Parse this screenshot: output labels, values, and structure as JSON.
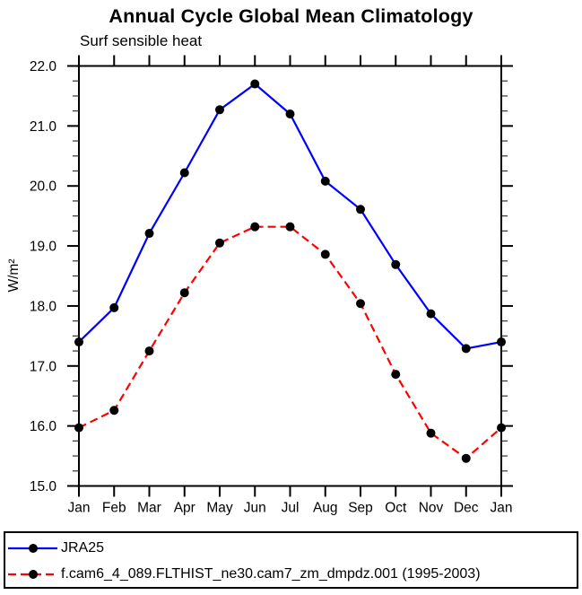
{
  "title": "Annual Cycle Global Mean Climatology",
  "subtitle": "Surf sensible heat",
  "chart_data": {
    "type": "line",
    "categories": [
      "Jan",
      "Feb",
      "Mar",
      "Apr",
      "May",
      "Jun",
      "Jul",
      "Aug",
      "Sep",
      "Oct",
      "Nov",
      "Dec",
      "Jan"
    ],
    "xlabel": "",
    "ylabel": "W/m²",
    "ylim": [
      15.0,
      22.0
    ],
    "ytick_major": 1.0,
    "ytick_minor": 0.25,
    "ytick_labels": [
      "15.0",
      "16.0",
      "17.0",
      "18.0",
      "19.0",
      "20.0",
      "21.0",
      "22.0"
    ],
    "grid": false,
    "legend_position": "bottom",
    "marker_color": "#000000",
    "frame_color": "#000000",
    "series": [
      {
        "name": "JRA25",
        "color": "#0000ff",
        "dash": "solid",
        "marker": "filled-circle",
        "values": [
          17.4,
          17.97,
          19.21,
          20.22,
          21.27,
          21.7,
          21.2,
          20.08,
          19.61,
          18.69,
          17.87,
          17.29,
          17.4
        ]
      },
      {
        "name": "f.cam6_4_089.FLTHIST_ne30.cam7_zm_dmpdz.001 (1995-2003)",
        "color": "#ff0000",
        "dash": "dashed",
        "marker": "filled-circle",
        "values": [
          15.97,
          16.26,
          17.25,
          18.22,
          19.05,
          19.32,
          19.32,
          18.86,
          18.04,
          16.86,
          15.88,
          15.46,
          15.97
        ]
      }
    ]
  }
}
